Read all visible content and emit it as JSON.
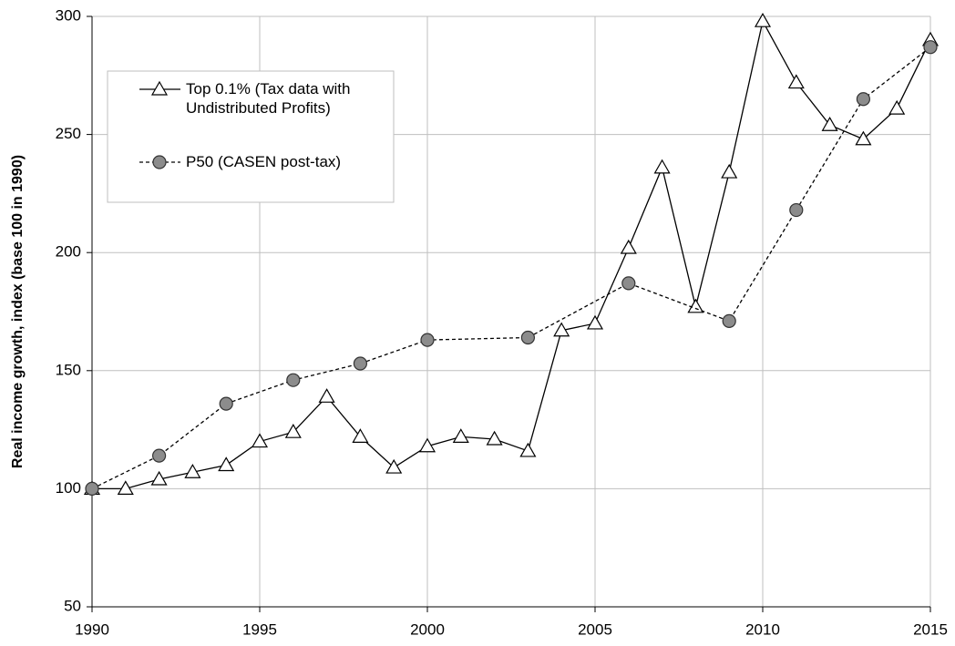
{
  "chart_data": {
    "type": "line",
    "y_label": "Real income growth, index (base 100 in 1990)",
    "xlim": [
      1990,
      2015
    ],
    "xticks": [
      1990,
      1995,
      2000,
      2005,
      2010,
      2015
    ],
    "ylim": [
      50,
      300
    ],
    "yticks": [
      50,
      100,
      150,
      200,
      250,
      300
    ],
    "grid": true,
    "legend": "upper left",
    "series": [
      {
        "name": "Top 0.1% (Tax data with Undistributed Profits)",
        "color": "#000000",
        "marker": "triangle",
        "line_style": "solid",
        "x": [
          1990,
          1991,
          1992,
          1993,
          1994,
          1995,
          1996,
          1997,
          1998,
          1999,
          2000,
          2001,
          2002,
          2003,
          2004,
          2005,
          2006,
          2007,
          2008,
          2009,
          2010,
          2011,
          2012,
          2013,
          2014,
          2015
        ],
        "values": [
          100,
          100,
          104,
          107,
          110,
          120,
          124,
          139,
          122,
          109,
          118,
          122,
          121,
          116,
          167,
          170,
          202,
          236,
          177,
          234,
          298,
          272,
          254,
          248,
          261,
          290
        ]
      },
      {
        "name": "P50 (CASEN post-tax)",
        "color": "#000000",
        "marker": "circle",
        "line_style": "dashed",
        "x": [
          1990,
          1992,
          1994,
          1996,
          1998,
          2000,
          2003,
          2006,
          2009,
          2011,
          2013,
          2015
        ],
        "values": [
          100,
          114,
          136,
          146,
          153,
          163,
          164,
          187,
          171,
          218,
          265,
          287
        ]
      }
    ]
  }
}
